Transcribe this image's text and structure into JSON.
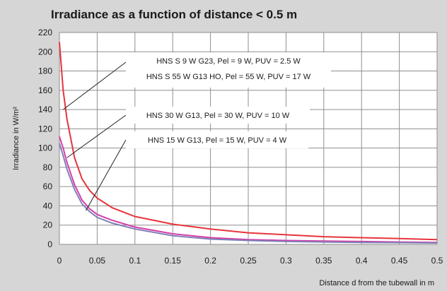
{
  "chart_data": {
    "type": "line",
    "title": "Irradiance as a function of distance < 0.5 m",
    "xlabel": "Distance d from the tubewall in m",
    "ylabel": "Irradiance in W/m²",
    "xlim": [
      0,
      0.5
    ],
    "ylim": [
      0,
      220
    ],
    "x_ticks": [
      "0",
      "0.05",
      "0.1",
      "0.15",
      "0.2",
      "0.25",
      "0.3",
      "0.35",
      "0.4",
      "0.45",
      "0.5"
    ],
    "y_ticks": [
      "0",
      "20",
      "40",
      "60",
      "80",
      "100",
      "120",
      "140",
      "160",
      "180",
      "200",
      "220"
    ],
    "grid": true,
    "series": [
      {
        "color": "#e8333c",
        "x": [
          0.0,
          0.005,
          0.01,
          0.02,
          0.03,
          0.04,
          0.05,
          0.07,
          0.1,
          0.15,
          0.2,
          0.25,
          0.3,
          0.35,
          0.4,
          0.45,
          0.5
        ],
        "y": [
          210,
          160,
          130,
          90,
          68,
          56,
          48,
          38,
          29,
          21,
          16,
          12,
          10,
          8,
          7,
          6,
          5
        ]
      },
      {
        "color": "#d63fa8",
        "x": [
          0.0,
          0.005,
          0.01,
          0.02,
          0.03,
          0.04,
          0.05,
          0.07,
          0.1,
          0.15,
          0.2,
          0.25,
          0.3,
          0.35,
          0.4,
          0.45,
          0.5
        ],
        "y": [
          112,
          100,
          85,
          62,
          46,
          37,
          31,
          25,
          18,
          11,
          7,
          5,
          4,
          3.5,
          3,
          2.5,
          2
        ]
      },
      {
        "color": "#7f7fb8",
        "x": [
          0.0,
          0.005,
          0.01,
          0.02,
          0.03,
          0.04,
          0.05,
          0.07,
          0.1,
          0.15,
          0.2,
          0.25,
          0.3,
          0.35,
          0.4,
          0.45,
          0.5
        ],
        "y": [
          105,
          92,
          78,
          57,
          42,
          34,
          28,
          22,
          16,
          9,
          5.5,
          4,
          3,
          2.5,
          2,
          1.8,
          1.5
        ]
      }
    ],
    "annotations": [
      {
        "lines": [
          "HNS S 9 W G23, Pel = 9 W, PUV = 2.5 W",
          "HNS S 55 W G13 HO, Pel = 55 W, PUV = 17 W"
        ],
        "target": [
          0.005,
          140
        ]
      },
      {
        "lines": [
          "HNS 30 W G13, Pel = 30 W, PUV = 10 W"
        ],
        "target": [
          0.01,
          90
        ]
      },
      {
        "lines": [
          "HNS 15 W G13, Pel = 15 W, PUV = 4 W"
        ],
        "target": [
          0.035,
          35
        ]
      }
    ]
  }
}
